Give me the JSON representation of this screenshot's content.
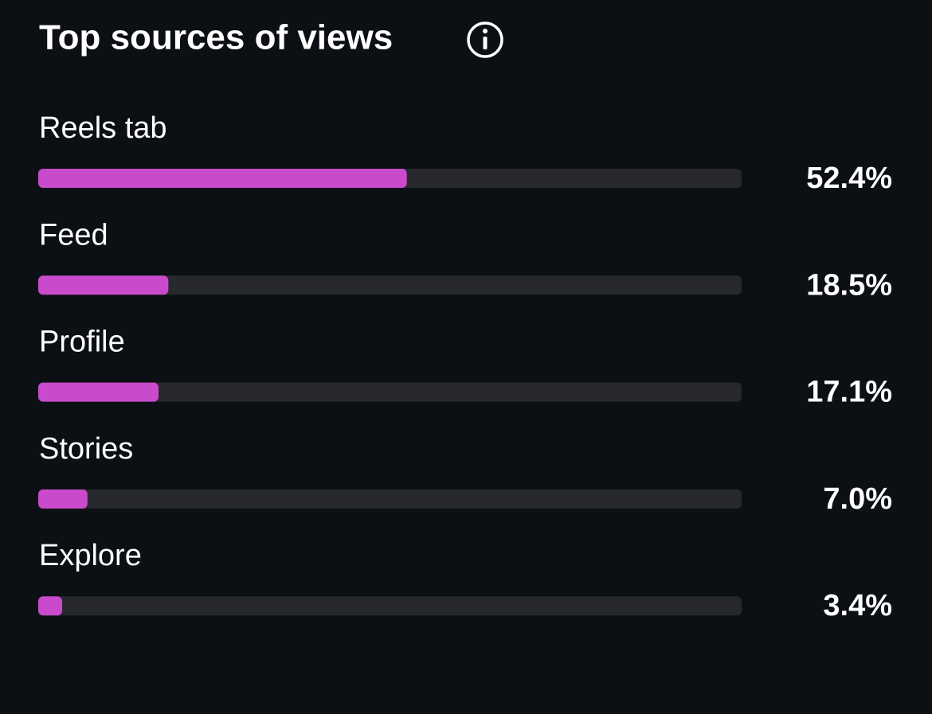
{
  "chart_data": {
    "type": "bar",
    "orientation": "horizontal",
    "title": "Top sources of views",
    "categories": [
      "Reels tab",
      "Feed",
      "Profile",
      "Stories",
      "Explore"
    ],
    "values": [
      52.4,
      18.5,
      17.1,
      7.0,
      3.4
    ],
    "value_labels": [
      "52.4%",
      "18.5%",
      "17.1%",
      "7.0%",
      "3.4%"
    ],
    "color": "#c94bcc",
    "xlim": [
      0,
      100
    ]
  }
}
